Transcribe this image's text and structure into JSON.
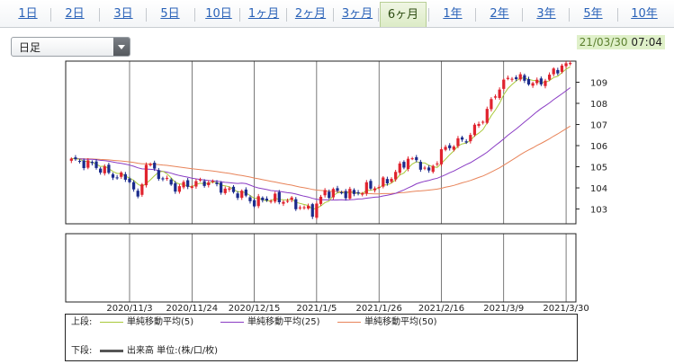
{
  "tabs": [
    {
      "label": "1日",
      "active": false
    },
    {
      "label": "2日",
      "active": false
    },
    {
      "label": "3日",
      "active": false
    },
    {
      "label": "5日",
      "active": false
    },
    {
      "label": "10日",
      "active": false
    },
    {
      "label": "1ヶ月",
      "active": false
    },
    {
      "label": "2ヶ月",
      "active": false
    },
    {
      "label": "3ヶ月",
      "active": false
    },
    {
      "label": "6ヶ月",
      "active": true
    },
    {
      "label": "1年",
      "active": false
    },
    {
      "label": "2年",
      "active": false
    },
    {
      "label": "3年",
      "active": false
    },
    {
      "label": "5年",
      "active": false
    },
    {
      "label": "10年",
      "active": false
    }
  ],
  "period_select": {
    "value": "日足"
  },
  "timestamp": {
    "date": "21/03/30",
    "time": "07:04"
  },
  "colors": {
    "up": "#e0232e",
    "down": "#1b2b8c",
    "sma5": "#a9c93a",
    "sma25": "#8a3cc4",
    "sma50": "#e8845a",
    "active_tab_bg": "#dcebc6",
    "timestamp_bg": "#dff0c9"
  },
  "legend": {
    "upper_label": "上段:",
    "lower_label": "下段:",
    "sma5": "単純移動平均(5)",
    "sma25": "単純移動平均(25)",
    "sma50": "単純移動平均(50)",
    "volume": "出来高 単位:(株/口/枚)"
  },
  "chart_data": {
    "type": "candlestick",
    "y_ticks": [
      "103",
      "104",
      "105",
      "106",
      "107",
      "108",
      "109"
    ],
    "ylim": [
      102.3,
      110.0
    ],
    "x_ticks": [
      "2020/11/3",
      "2020/11/24",
      "2020/12/15",
      "2021/1/5",
      "2021/1/26",
      "2021/2/16",
      "2021/3/9",
      "2021/3/30"
    ],
    "x_tick_index": [
      14,
      29,
      44,
      59,
      74,
      89,
      104,
      119
    ],
    "sessions": 121,
    "close_anchors": [
      [
        0,
        105.3
      ],
      [
        5,
        105.1
      ],
      [
        10,
        104.6
      ],
      [
        14,
        104.4
      ],
      [
        16,
        103.4
      ],
      [
        18,
        105.2
      ],
      [
        21,
        104.6
      ],
      [
        25,
        104.0
      ],
      [
        29,
        104.2
      ],
      [
        33,
        104.3
      ],
      [
        37,
        103.9
      ],
      [
        41,
        103.7
      ],
      [
        44,
        103.3
      ],
      [
        47,
        103.5
      ],
      [
        52,
        103.4
      ],
      [
        55,
        103.1
      ],
      [
        58,
        102.9
      ],
      [
        61,
        103.8
      ],
      [
        64,
        103.8
      ],
      [
        68,
        103.7
      ],
      [
        71,
        104.0
      ],
      [
        74,
        104.1
      ],
      [
        77,
        104.5
      ],
      [
        81,
        105.4
      ],
      [
        84,
        105.1
      ],
      [
        86,
        104.7
      ],
      [
        89,
        105.7
      ],
      [
        92,
        106.1
      ],
      [
        95,
        106.3
      ],
      [
        99,
        107.3
      ],
      [
        103,
        108.8
      ],
      [
        106,
        109.3
      ],
      [
        109,
        109.1
      ],
      [
        112,
        108.9
      ],
      [
        115,
        109.3
      ],
      [
        118,
        109.8
      ],
      [
        120,
        109.8
      ]
    ],
    "sma": [
      {
        "name": "単純移動平均(5)",
        "period": 5
      },
      {
        "name": "単純移動平均(25)",
        "period": 25
      },
      {
        "name": "単純移動平均(50)",
        "period": 50
      }
    ],
    "volume": []
  }
}
